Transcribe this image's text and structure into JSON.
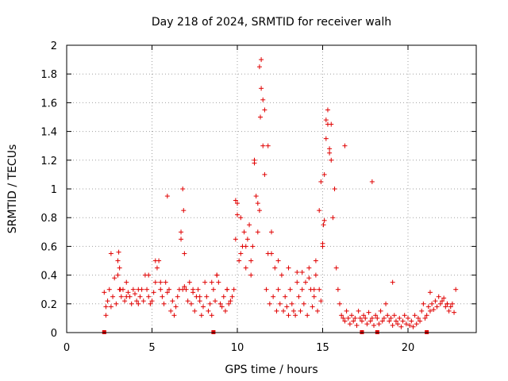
{
  "chart_data": {
    "type": "scatter",
    "title": "Day 218 of 2024, SRMTID for receiver walh",
    "xlabel": "GPS time / hours",
    "ylabel": "SRMTID / TECUs",
    "xlim": [
      0,
      24
    ],
    "ylim": [
      0,
      2
    ],
    "xticks": [
      0,
      5,
      10,
      15,
      20
    ],
    "yticks": [
      0,
      0.2,
      0.4,
      0.6,
      0.8,
      1,
      1.2,
      1.4,
      1.6,
      1.8,
      2
    ],
    "grid": true,
    "marker": "+",
    "color": "#e00000",
    "gap_markers_x": [
      2.2,
      8.6,
      17.3,
      18.2,
      21.1
    ],
    "series": [
      {
        "name": "SRMTID",
        "x": [
          2.2,
          2.3,
          2.4,
          2.5,
          2.6,
          2.7,
          2.8,
          2.9,
          3.0,
          3.05,
          3.1,
          3.15,
          3.2,
          3.3,
          3.4,
          3.5,
          3.6,
          3.7,
          3.8,
          3.9,
          4.0,
          4.1,
          4.2,
          4.3,
          4.4,
          4.5,
          4.6,
          4.7,
          4.8,
          4.9,
          5.0,
          5.1,
          5.2,
          5.3,
          5.4,
          5.5,
          5.6,
          5.7,
          5.8,
          5.9,
          6.0,
          6.1,
          6.2,
          6.3,
          6.4,
          6.5,
          6.6,
          6.7,
          6.8,
          6.85,
          6.9,
          7.0,
          7.1,
          7.2,
          7.3,
          7.4,
          7.5,
          7.6,
          7.7,
          7.8,
          7.9,
          8.0,
          8.1,
          8.2,
          8.3,
          8.4,
          8.5,
          8.6,
          8.7,
          8.8,
          8.9,
          9.0,
          9.1,
          9.2,
          9.3,
          9.4,
          9.5,
          9.6,
          9.7,
          9.8,
          9.9,
          10.0,
          10.1,
          10.2,
          10.3,
          10.4,
          10.5,
          10.6,
          10.7,
          10.8,
          10.9,
          11.0,
          11.1,
          11.2,
          11.3,
          11.35,
          11.4,
          11.5,
          11.6,
          11.7,
          11.8,
          11.9,
          12.0,
          12.1,
          12.2,
          12.3,
          12.4,
          12.5,
          12.6,
          12.7,
          12.8,
          12.9,
          13.0,
          13.1,
          13.2,
          13.3,
          13.4,
          13.5,
          13.6,
          13.7,
          13.8,
          13.9,
          14.0,
          14.1,
          14.2,
          14.3,
          14.4,
          14.5,
          14.6,
          14.7,
          14.8,
          14.9,
          15.0,
          15.05,
          15.1,
          15.2,
          15.3,
          15.4,
          15.5,
          15.6,
          15.7,
          15.8,
          15.9,
          16.0,
          16.1,
          16.2,
          16.3,
          16.4,
          16.5,
          16.6,
          16.7,
          16.8,
          16.9,
          17.0,
          17.1,
          17.2,
          17.3,
          17.4,
          17.5,
          17.6,
          17.7,
          17.8,
          17.9,
          18.0,
          18.1,
          18.2,
          18.3,
          18.4,
          18.5,
          18.6,
          18.7,
          18.8,
          18.9,
          19.0,
          19.1,
          19.2,
          19.3,
          19.4,
          19.5,
          19.6,
          19.7,
          19.8,
          19.9,
          20.0,
          20.1,
          20.2,
          20.3,
          20.4,
          20.5,
          20.6,
          20.7,
          20.8,
          20.9,
          21.0,
          21.1,
          21.2,
          21.3,
          21.4,
          21.5,
          21.6,
          21.7,
          21.8,
          21.9,
          22.0,
          22.1,
          22.2,
          22.3,
          22.4,
          22.5,
          22.6,
          22.7,
          22.8,
          2.3,
          2.6,
          3.0,
          3.1,
          3.5,
          4.2,
          4.8,
          5.2,
          5.5,
          5.9,
          6.7,
          6.8,
          6.9,
          7.4,
          7.8,
          8.5,
          8.8,
          9.4,
          9.9,
          10.0,
          10.2,
          10.5,
          10.8,
          11.0,
          11.2,
          11.3,
          11.4,
          11.5,
          11.6,
          11.8,
          12.0,
          12.4,
          13.0,
          13.5,
          13.8,
          14.2,
          14.5,
          14.6,
          14.8,
          14.9,
          15.0,
          15.1,
          15.2,
          15.3,
          15.4,
          15.5,
          16.3,
          17.9,
          19.1,
          21.3,
          22.3
        ],
        "y": [
          0.28,
          0.12,
          0.22,
          0.3,
          0.18,
          0.25,
          0.38,
          0.2,
          0.5,
          0.56,
          0.45,
          0.3,
          0.25,
          0.3,
          0.22,
          0.35,
          0.28,
          0.25,
          0.2,
          0.3,
          0.27,
          0.22,
          0.2,
          0.25,
          0.3,
          0.22,
          0.4,
          0.3,
          0.25,
          0.2,
          0.22,
          0.28,
          0.35,
          0.45,
          0.5,
          0.3,
          0.25,
          0.2,
          0.35,
          0.28,
          0.3,
          0.15,
          0.22,
          0.12,
          0.18,
          0.25,
          0.3,
          0.65,
          1.0,
          0.85,
          0.55,
          0.3,
          0.22,
          0.35,
          0.2,
          0.28,
          0.15,
          0.25,
          0.3,
          0.22,
          0.12,
          0.18,
          0.35,
          0.25,
          0.15,
          0.2,
          0.12,
          0.3,
          0.22,
          0.4,
          0.35,
          0.2,
          0.18,
          0.25,
          0.15,
          0.3,
          0.2,
          0.22,
          0.25,
          0.3,
          0.65,
          0.9,
          0.5,
          0.55,
          0.6,
          0.7,
          0.45,
          0.65,
          0.75,
          0.4,
          0.6,
          1.2,
          0.95,
          0.7,
          0.85,
          1.5,
          1.9,
          1.3,
          1.1,
          0.3,
          0.55,
          0.2,
          0.7,
          0.25,
          0.45,
          0.15,
          0.3,
          0.2,
          0.4,
          0.15,
          0.25,
          0.18,
          0.12,
          0.3,
          0.2,
          0.15,
          0.12,
          0.42,
          0.25,
          0.15,
          0.3,
          0.2,
          0.35,
          0.12,
          0.45,
          0.3,
          0.18,
          0.25,
          0.4,
          0.15,
          0.3,
          0.22,
          0.6,
          0.75,
          1.1,
          1.35,
          1.55,
          1.25,
          1.45,
          0.8,
          1.0,
          0.45,
          0.3,
          0.2,
          0.12,
          0.1,
          0.08,
          0.15,
          0.1,
          0.06,
          0.12,
          0.08,
          0.1,
          0.05,
          0.15,
          0.1,
          0.08,
          0.12,
          0.1,
          0.06,
          0.14,
          0.08,
          0.1,
          0.05,
          0.12,
          0.1,
          0.06,
          0.15,
          0.08,
          0.1,
          0.2,
          0.12,
          0.08,
          0.1,
          0.05,
          0.12,
          0.08,
          0.06,
          0.1,
          0.04,
          0.08,
          0.12,
          0.06,
          0.1,
          0.05,
          0.08,
          0.04,
          0.12,
          0.06,
          0.1,
          0.08,
          0.15,
          0.2,
          0.1,
          0.12,
          0.18,
          0.15,
          0.2,
          0.16,
          0.22,
          0.18,
          0.25,
          0.2,
          0.22,
          0.24,
          0.18,
          0.2,
          0.15,
          0.18,
          0.2,
          0.14,
          0.3,
          0.18,
          0.55,
          0.4,
          0.3,
          0.25,
          0.3,
          0.4,
          0.5,
          0.35,
          0.95,
          0.7,
          0.3,
          0.32,
          0.3,
          0.25,
          0.35,
          0.4,
          0.3,
          0.92,
          0.82,
          0.8,
          0.6,
          0.5,
          1.18,
          0.9,
          1.85,
          1.7,
          1.62,
          1.55,
          1.3,
          0.55,
          0.5,
          0.45,
          0.35,
          0.42,
          0.38,
          0.3,
          0.5,
          0.85,
          1.05,
          0.62,
          0.78,
          1.48,
          1.45,
          1.28,
          1.2,
          1.3,
          1.05,
          0.35,
          0.28,
          0.2
        ]
      }
    ]
  }
}
